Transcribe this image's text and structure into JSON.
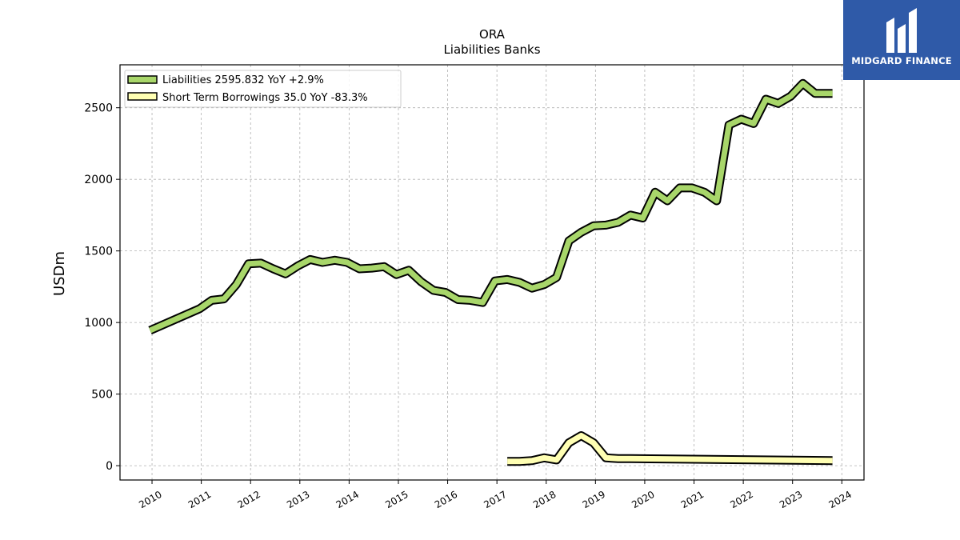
{
  "brand": {
    "name": "MIDGARD FINANCE"
  },
  "chart_data": {
    "type": "line",
    "title": "ORA",
    "subtitle": "Liabilities Banks",
    "ylabel": "USDm",
    "xlabel": "",
    "ylim": [
      -100,
      2800
    ],
    "yticks": [
      0,
      500,
      1000,
      1500,
      2000,
      2500
    ],
    "xlim": [
      2009.35,
      2024.45
    ],
    "xticks": [
      "2010",
      "2011",
      "2012",
      "2013",
      "2014",
      "2015",
      "2016",
      "2017",
      "2018",
      "2019",
      "2020",
      "2021",
      "2022",
      "2023",
      "2024"
    ],
    "grid": true,
    "legend_position": "top-left",
    "series": [
      {
        "name": "Liabilities",
        "legend_label": "Liabilities  2595.832 YoY +2.9%",
        "color": "#a8d66a",
        "x": [
          2009.96,
          2010.96,
          2011.21,
          2011.46,
          2011.71,
          2011.96,
          2012.21,
          2012.46,
          2012.71,
          2012.96,
          2013.21,
          2013.46,
          2013.71,
          2013.96,
          2014.21,
          2014.46,
          2014.71,
          2014.96,
          2015.21,
          2015.46,
          2015.71,
          2015.96,
          2016.21,
          2016.46,
          2016.71,
          2016.96,
          2017.21,
          2017.46,
          2017.71,
          2017.96,
          2018.21,
          2018.46,
          2018.71,
          2018.96,
          2019.21,
          2019.46,
          2019.71,
          2019.96,
          2020.21,
          2020.46,
          2020.71,
          2020.96,
          2021.21,
          2021.46,
          2021.71,
          2021.96,
          2022.21,
          2022.46,
          2022.71,
          2022.96,
          2023.21,
          2023.46,
          2023.81
        ],
        "values": [
          945,
          1095,
          1155,
          1165,
          1265,
          1410,
          1415,
          1375,
          1340,
          1395,
          1440,
          1420,
          1435,
          1420,
          1375,
          1380,
          1390,
          1335,
          1365,
          1285,
          1225,
          1210,
          1160,
          1155,
          1140,
          1290,
          1300,
          1280,
          1240,
          1265,
          1315,
          1570,
          1630,
          1675,
          1680,
          1700,
          1750,
          1730,
          1910,
          1850,
          1940,
          1940,
          1910,
          1850,
          2380,
          2420,
          2390,
          2560,
          2530,
          2580,
          2670,
          2600,
          2600
        ]
      },
      {
        "name": "Short Term Borrowings",
        "legend_label": "Short Term Borrowings  35.0 YoY -83.3%",
        "color": "#ffffb3",
        "x": [
          2017.21,
          2017.46,
          2017.71,
          2017.96,
          2018.21,
          2018.46,
          2018.71,
          2018.96,
          2019.21,
          2019.46,
          2019.71,
          2023.81
        ],
        "values": [
          30,
          30,
          35,
          55,
          40,
          160,
          210,
          160,
          55,
          50,
          50,
          35
        ]
      }
    ]
  }
}
